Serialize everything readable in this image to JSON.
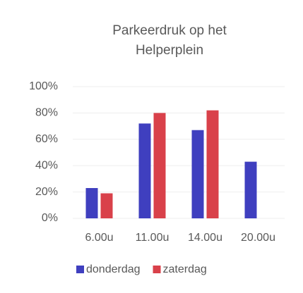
{
  "chart_data": {
    "type": "bar",
    "title": [
      "Parkeerdruk op het",
      "Helperplein"
    ],
    "categories": [
      "6.00u",
      "11.00u",
      "14.00u",
      "20.00u"
    ],
    "series": [
      {
        "name": "donderdag",
        "color": "#3f3fbf",
        "values": [
          23,
          72,
          67,
          43
        ]
      },
      {
        "name": "zaterdag",
        "color": "#d9414a",
        "values": [
          19,
          80,
          82,
          null
        ]
      }
    ],
    "ylim": [
      0,
      100
    ],
    "yticks": [
      {
        "value": 0,
        "label": "0%"
      },
      {
        "value": 20,
        "label": "20%"
      },
      {
        "value": 40,
        "label": "40%"
      },
      {
        "value": 60,
        "label": "60%"
      },
      {
        "value": 80,
        "label": "80%"
      },
      {
        "value": 100,
        "label": "100%"
      }
    ],
    "grid": true,
    "legend": "bottom"
  }
}
